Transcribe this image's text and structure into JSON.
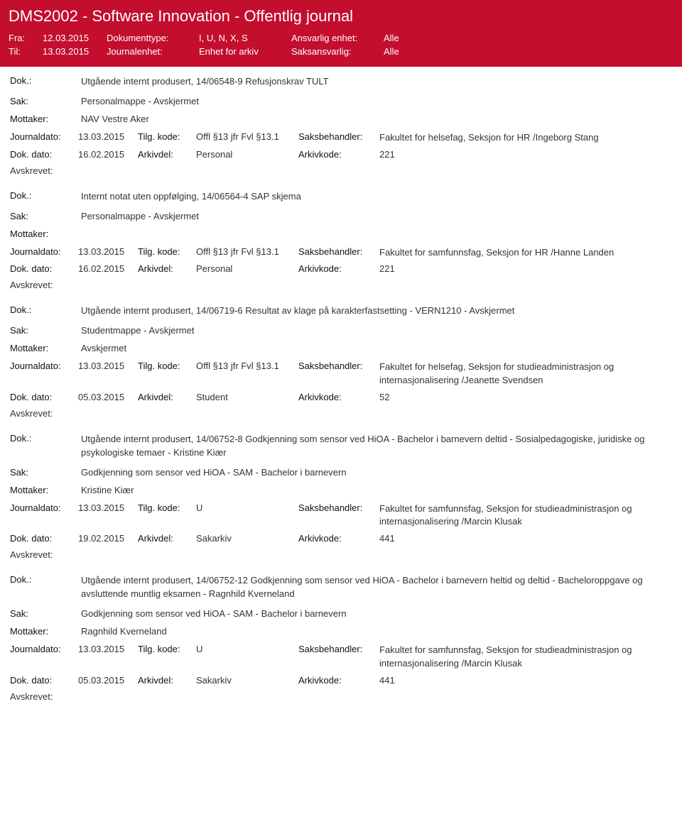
{
  "header": {
    "title": "DMS2002 - Software Innovation - Offentlig journal",
    "fra_label": "Fra:",
    "fra_value": "12.03.2015",
    "til_label": "Til:",
    "til_value": "13.03.2015",
    "dokumenttype_label": "Dokumenttype:",
    "dokumenttype_value": "I, U, N, X, S",
    "journalenhet_label": "Journalenhet:",
    "journalenhet_value": "Enhet for arkiv",
    "ansvarlig_label": "Ansvarlig enhet:",
    "ansvarlig_value": "Alle",
    "saksansvarlig_label": "Saksansvarlig:",
    "saksansvarlig_value": "Alle"
  },
  "labels": {
    "dok": "Dok.:",
    "sak": "Sak:",
    "mottaker": "Mottaker:",
    "journaldato": "Journaldato:",
    "tilg_kode": "Tilg. kode:",
    "saksbehandler": "Saksbehandler:",
    "dok_dato": "Dok. dato:",
    "arkivdel": "Arkivdel:",
    "arkivkode": "Arkivkode:",
    "avskrevet": "Avskrevet:"
  },
  "records": [
    {
      "dok": "Utgående internt produsert, 14/06548-9 Refusjonskrav TULT",
      "sak": "Personalmappe - Avskjermet",
      "mottaker": "NAV Vestre Aker",
      "journaldato": "13.03.2015",
      "tilg_kode": "Offl §13 jfr Fvl §13.1",
      "saksbehandler": "Fakultet for helsefag, Seksjon for HR /Ingeborg Stang",
      "dok_dato": "16.02.2015",
      "arkivdel": "Personal",
      "arkivkode": "221"
    },
    {
      "dok": "Internt notat uten oppfølging, 14/06564-4 SAP skjema",
      "sak": "Personalmappe - Avskjermet",
      "mottaker": "",
      "journaldato": "13.03.2015",
      "tilg_kode": "Offl §13 jfr Fvl §13.1",
      "saksbehandler": "Fakultet for samfunnsfag, Seksjon for HR /Hanne Landen",
      "dok_dato": "16.02.2015",
      "arkivdel": "Personal",
      "arkivkode": "221"
    },
    {
      "dok": "Utgående internt produsert, 14/06719-6 Resultat av klage på karakterfastsetting - VERN1210 - Avskjermet",
      "sak": "Studentmappe - Avskjermet",
      "mottaker": "Avskjermet",
      "journaldato": "13.03.2015",
      "tilg_kode": "Offl §13 jfr Fvl §13.1",
      "saksbehandler": "Fakultet for helsefag, Seksjon for studieadministrasjon og internasjonalisering /Jeanette Svendsen",
      "dok_dato": "05.03.2015",
      "arkivdel": "Student",
      "arkivkode": "52"
    },
    {
      "dok": "Utgående internt produsert, 14/06752-8 Godkjenning som sensor ved HiOA - Bachelor i barnevern deltid - Sosialpedagogiske, juridiske og psykologiske temaer - Kristine Kiær",
      "sak": "Godkjenning som sensor ved HiOA - SAM - Bachelor i barnevern",
      "mottaker": "Kristine Kiær",
      "journaldato": "13.03.2015",
      "tilg_kode": "U",
      "saksbehandler": "Fakultet for samfunnsfag, Seksjon for studieadministrasjon og internasjonalisering /Marcin Klusak",
      "dok_dato": "19.02.2015",
      "arkivdel": "Sakarkiv",
      "arkivkode": "441"
    },
    {
      "dok": "Utgående internt produsert, 14/06752-12 Godkjenning som sensor ved HiOA - Bachelor i barnevern heltid og deltid - Bacheloroppgave og avsluttende muntlig eksamen - Ragnhild Kverneland",
      "sak": "Godkjenning som sensor ved HiOA - SAM - Bachelor i barnevern",
      "mottaker": "Ragnhild Kverneland",
      "journaldato": "13.03.2015",
      "tilg_kode": "U",
      "saksbehandler": "Fakultet for samfunnsfag, Seksjon for studieadministrasjon og internasjonalisering /Marcin Klusak",
      "dok_dato": "05.03.2015",
      "arkivdel": "Sakarkiv",
      "arkivkode": "441"
    }
  ]
}
